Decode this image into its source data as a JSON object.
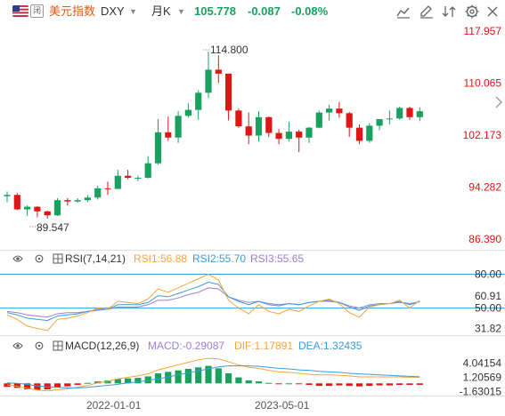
{
  "header": {
    "name": "美元指数",
    "symbol": "DXY",
    "period": "月K",
    "price": "105.778",
    "change": "-0.087",
    "change_pct": "-0.08%"
  },
  "colors": {
    "up": "#1aa15f",
    "down": "#e01515",
    "blue": "#3a9bd9",
    "orange": "#f5a53c",
    "purple": "#9b7fd4"
  },
  "main": {
    "y_ticks": [
      "117.957",
      "110.065",
      "102.173",
      "94.282",
      "86.390"
    ],
    "high_label": "114.800",
    "low_label": "89.547"
  },
  "rsi": {
    "title": "RSI(7,14,21)",
    "rsi1": "RSI1:56.88",
    "rsi2": "RSI2:55.70",
    "rsi3": "RSI3:55.65",
    "ticks": [
      "80.00",
      "60.91",
      "50.00",
      "31.82"
    ]
  },
  "macd": {
    "title": "MACD(12,26,9)",
    "macd": "MACD:-0.29087",
    "dif": "DIF:1.17891",
    "dea": "DEA:1.32435",
    "ticks": [
      "4.04154",
      "1.20569",
      "-1.63015"
    ]
  },
  "x_labels": [
    "2022-01-01",
    "2023-05-01"
  ],
  "chart_data": {
    "type": "candlestick",
    "ohlc": [
      [
        92.9,
        93.6,
        92.0,
        93.1
      ],
      [
        93.1,
        93.4,
        90.8,
        90.9
      ],
      [
        90.9,
        91.5,
        89.9,
        91.3
      ],
      [
        91.3,
        91.4,
        89.7,
        90.6
      ],
      [
        90.6,
        90.7,
        89.5,
        90.0
      ],
      [
        90.0,
        92.6,
        89.9,
        92.3
      ],
      [
        92.3,
        92.6,
        91.5,
        92.1
      ],
      [
        92.1,
        92.6,
        91.9,
        92.3
      ],
      [
        92.3,
        93.1,
        92.0,
        92.7
      ],
      [
        92.7,
        94.5,
        92.4,
        94.1
      ],
      [
        94.1,
        95.1,
        93.1,
        94.0
      ],
      [
        94.0,
        96.9,
        94.0,
        96.0
      ],
      [
        96.0,
        96.9,
        95.5,
        95.7
      ],
      [
        95.7,
        96.0,
        95.2,
        95.7
      ],
      [
        95.7,
        99.0,
        95.6,
        97.9
      ],
      [
        97.9,
        104.6,
        97.7,
        102.6
      ],
      [
        102.6,
        105.0,
        101.3,
        101.8
      ],
      [
        101.8,
        105.8,
        101.0,
        105.1
      ],
      [
        105.1,
        107.0,
        104.8,
        106.0
      ],
      [
        106.0,
        109.0,
        104.5,
        108.6
      ],
      [
        108.6,
        114.8,
        107.8,
        112.1
      ],
      [
        112.1,
        114.3,
        110.1,
        111.5
      ],
      [
        111.5,
        111.5,
        104.4,
        105.9
      ],
      [
        105.9,
        106.2,
        103.3,
        103.5
      ],
      [
        103.5,
        105.6,
        100.8,
        102.1
      ],
      [
        102.1,
        105.8,
        101.2,
        104.9
      ],
      [
        104.9,
        105.0,
        101.9,
        102.5
      ],
      [
        102.5,
        103.1,
        100.8,
        101.6
      ],
      [
        101.6,
        104.2,
        101.2,
        102.7
      ],
      [
        102.7,
        103.0,
        99.6,
        101.8
      ],
      [
        101.8,
        103.4,
        101.0,
        103.3
      ],
      [
        103.3,
        105.9,
        103.2,
        105.6
      ],
      [
        105.6,
        106.8,
        104.4,
        106.2
      ],
      [
        106.2,
        107.2,
        104.8,
        105.5
      ],
      [
        105.5,
        105.7,
        101.9,
        103.3
      ],
      [
        103.3,
        103.8,
        100.8,
        101.3
      ],
      [
        101.3,
        104.0,
        101.0,
        103.6
      ],
      [
        103.6,
        104.5,
        102.9,
        104.6
      ],
      [
        104.6,
        105.9,
        103.8,
        104.7
      ],
      [
        104.7,
        106.5,
        104.5,
        106.3
      ],
      [
        106.3,
        106.5,
        104.5,
        104.9
      ],
      [
        104.9,
        106.4,
        104.3,
        105.8
      ]
    ],
    "rsi_series": {
      "rsi1": [
        44,
        40,
        34,
        32,
        30,
        40,
        41,
        43,
        46,
        50,
        49,
        56,
        55,
        54,
        58,
        67,
        64,
        68,
        72,
        76,
        80,
        75,
        57,
        50,
        45,
        53,
        47,
        45,
        49,
        47,
        52,
        56,
        58,
        54,
        46,
        42,
        51,
        53,
        54,
        57,
        50,
        56.88
      ],
      "rsi2": [
        46,
        44,
        41,
        40,
        39,
        43,
        44,
        45,
        47,
        49,
        49,
        53,
        53,
        53,
        55,
        61,
        60,
        63,
        66,
        69,
        73,
        71,
        60,
        56,
        53,
        56,
        53,
        52,
        54,
        53,
        55,
        56,
        57,
        55,
        51,
        48,
        52,
        53,
        54,
        56,
        53,
        55.7
      ],
      "rsi3": [
        47,
        46,
        44,
        43,
        42,
        45,
        46,
        46,
        47,
        48,
        49,
        51,
        51,
        51,
        53,
        57,
        57,
        59,
        62,
        64,
        68,
        67,
        60,
        57,
        55,
        56,
        54,
        53,
        54,
        53,
        55,
        56,
        56,
        55,
        52,
        50,
        53,
        54,
        54,
        55,
        54,
        55.65
      ]
    },
    "macd_series": {
      "hist": [
        -0.7,
        -0.9,
        -1.2,
        -1.3,
        -1.2,
        -0.8,
        -0.6,
        -0.3,
        0.1,
        0.4,
        0.6,
        0.9,
        1.0,
        1.1,
        1.4,
        2.0,
        2.3,
        2.6,
        2.9,
        3.2,
        3.5,
        3.0,
        2.0,
        1.2,
        0.6,
        0.4,
        0.1,
        -0.1,
        0.0,
        -0.1,
        -0.3,
        -0.5,
        -0.5,
        -0.4,
        -0.5,
        -0.6,
        -0.5,
        -0.4,
        -0.4,
        -0.3,
        -0.3,
        -0.29
      ],
      "dif": [
        -0.3,
        -0.6,
        -1.0,
        -1.3,
        -1.5,
        -1.3,
        -1.1,
        -0.8,
        -0.4,
        0.1,
        0.4,
        0.9,
        1.2,
        1.5,
        1.9,
        2.7,
        3.2,
        3.7,
        4.2,
        4.7,
        5.0,
        4.9,
        4.3,
        3.7,
        3.2,
        3.0,
        2.6,
        2.3,
        2.2,
        2.0,
        1.8,
        1.7,
        1.7,
        1.6,
        1.5,
        1.3,
        1.3,
        1.3,
        1.3,
        1.3,
        1.2,
        1.18
      ],
      "dea": [
        0.1,
        0.0,
        -0.2,
        -0.5,
        -0.7,
        -0.8,
        -0.9,
        -0.9,
        -0.8,
        -0.6,
        -0.4,
        -0.2,
        0.1,
        0.3,
        0.6,
        0.9,
        1.3,
        1.7,
        2.1,
        2.5,
        2.9,
        3.3,
        3.5,
        3.5,
        3.5,
        3.4,
        3.2,
        3.0,
        2.9,
        2.7,
        2.6,
        2.4,
        2.3,
        2.2,
        2.0,
        1.9,
        1.8,
        1.7,
        1.6,
        1.5,
        1.4,
        1.32
      ]
    }
  }
}
